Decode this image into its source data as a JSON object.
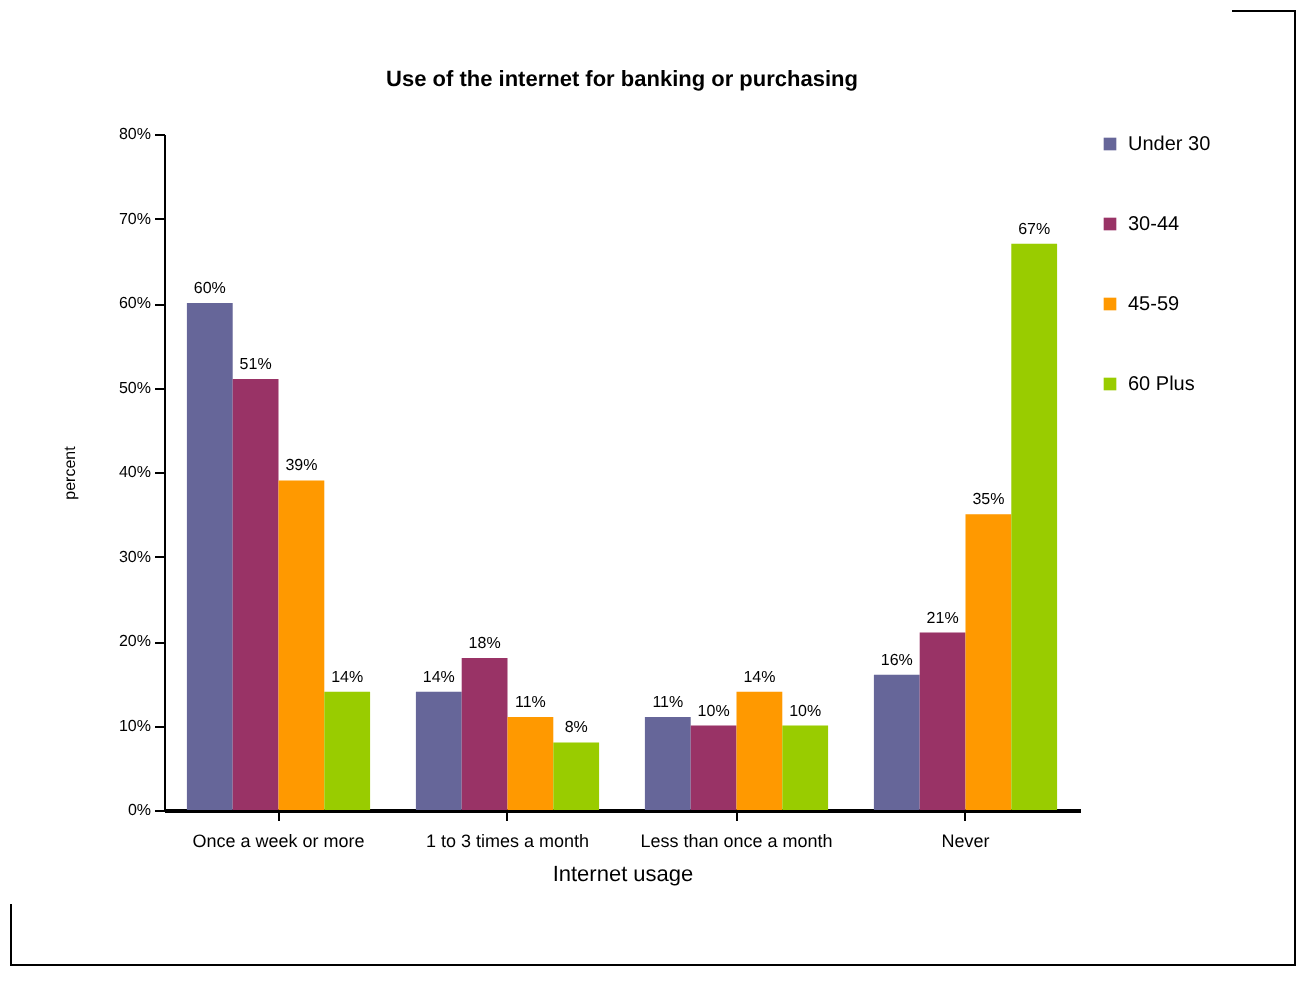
{
  "chart_data": {
    "type": "bar",
    "title": "Use of the internet for banking or purchasing",
    "xlabel": "Internet usage",
    "ylabel": "percent",
    "categories": [
      "Once a week or more",
      "1 to 3 times a month",
      "Less than once a month",
      "Never"
    ],
    "series": [
      {
        "name": "Under 30",
        "color": "#666699",
        "values": [
          60,
          14,
          11,
          16
        ],
        "value_labels": [
          "60%",
          "14%",
          "11%",
          "16%"
        ]
      },
      {
        "name": "30-44",
        "color": "#993366",
        "values": [
          51,
          18,
          10,
          21
        ],
        "value_labels": [
          "51%",
          "18%",
          "10%",
          "21%"
        ]
      },
      {
        "name": "45-59",
        "color": "#ff9900",
        "values": [
          39,
          11,
          14,
          35
        ],
        "value_labels": [
          "39%",
          "11%",
          "14%",
          "35%"
        ]
      },
      {
        "name": "60 Plus",
        "color": "#99cc00",
        "values": [
          14,
          8,
          10,
          67
        ],
        "value_labels": [
          "14%",
          "8%",
          "10%",
          "67%"
        ]
      }
    ],
    "ylim": [
      0,
      80
    ],
    "yticks": [
      {
        "value": 0,
        "label": "0%"
      },
      {
        "value": 10,
        "label": "10%"
      },
      {
        "value": 20,
        "label": "20%"
      },
      {
        "value": 30,
        "label": "30%"
      },
      {
        "value": 40,
        "label": "40%"
      },
      {
        "value": 50,
        "label": "50%"
      },
      {
        "value": 60,
        "label": "60%"
      },
      {
        "value": 70,
        "label": "70%"
      },
      {
        "value": 80,
        "label": "80%"
      }
    ],
    "grid": false,
    "legend": "right"
  }
}
